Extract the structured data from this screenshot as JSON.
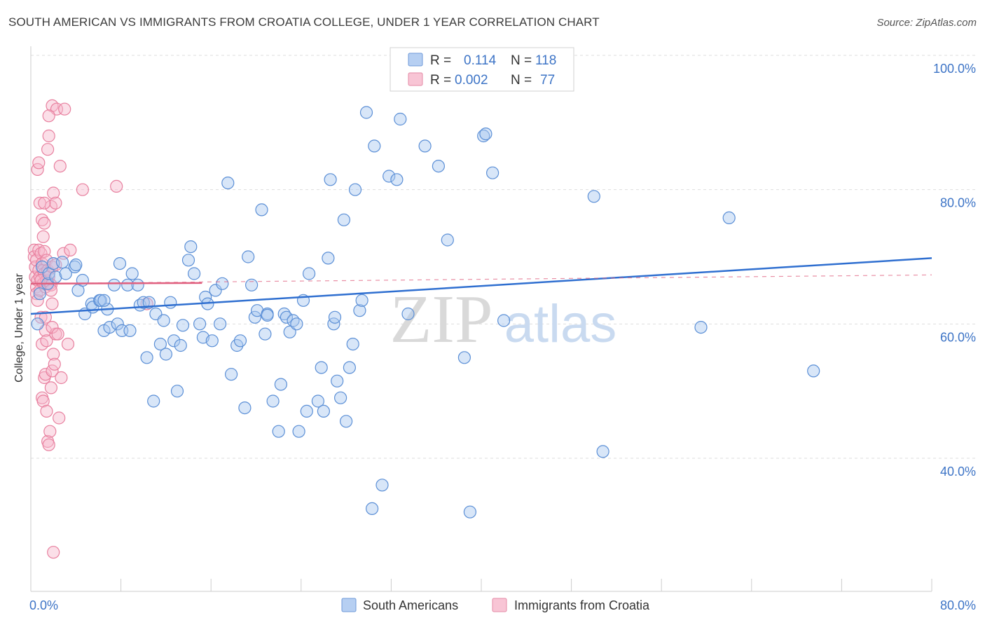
{
  "title": "SOUTH AMERICAN VS IMMIGRANTS FROM CROATIA COLLEGE, UNDER 1 YEAR CORRELATION CHART",
  "source": "Source: ZipAtlas.com",
  "watermark": {
    "zip": "ZIP",
    "atlas": "atlas"
  },
  "colors": {
    "blue": "#5b8fd6",
    "blue_fill": "#a9c7ef",
    "blue_line": "#2f6fd0",
    "pink": "#e8809f",
    "pink_fill": "#f6b9cc",
    "pink_line": "#e0607f",
    "axis_text": "#3d74c6",
    "grid": "#dddddd"
  },
  "legend": {
    "row1": {
      "r_label": "R =",
      "r_value": "0.114",
      "n_label": "N =",
      "n_value": "118"
    },
    "row2": {
      "r_label": "R =",
      "r_value": "0.002",
      "n_label": "N =",
      "n_value": "77"
    }
  },
  "bottom_legend": {
    "series1": "South Americans",
    "series2": "Immigrants from Croatia"
  },
  "chart_data": {
    "type": "scatter",
    "title": "SOUTH AMERICAN VS IMMIGRANTS FROM CROATIA COLLEGE, UNDER 1 YEAR CORRELATION CHART",
    "xlabel": "",
    "ylabel": "College, Under 1 year",
    "xlim": [
      0,
      80
    ],
    "ylim": [
      20,
      103
    ],
    "x_tick_labels": [
      "0.0%",
      "80.0%"
    ],
    "y_ticks": [
      40,
      60,
      80,
      100
    ],
    "y_tick_labels": [
      "40.0%",
      "60.0%",
      "80.0%",
      "100.0%"
    ],
    "series": [
      {
        "name": "South Americans",
        "R": 0.114,
        "N": 118,
        "trend": [
          [
            0,
            61.5
          ],
          [
            80,
            69.8
          ]
        ],
        "points": [
          [
            1.0,
            68.5
          ],
          [
            1.5,
            66.0
          ],
          [
            1.6,
            67.5
          ],
          [
            2.0,
            69.0
          ],
          [
            2.2,
            67.0
          ],
          [
            2.8,
            69.2
          ],
          [
            3.1,
            67.5
          ],
          [
            3.9,
            68.5
          ],
          [
            4.2,
            65.0
          ],
          [
            4.6,
            66.5
          ],
          [
            4.8,
            61.5
          ],
          [
            5.4,
            63.0
          ],
          [
            5.5,
            62.5
          ],
          [
            6.1,
            63.5
          ],
          [
            6.2,
            63.5
          ],
          [
            6.5,
            59.0
          ],
          [
            6.8,
            62.2
          ],
          [
            7.0,
            59.5
          ],
          [
            7.4,
            65.8
          ],
          [
            7.7,
            60.0
          ],
          [
            7.9,
            69.0
          ],
          [
            8.1,
            59.0
          ],
          [
            8.6,
            65.8
          ],
          [
            8.8,
            59.0
          ],
          [
            9.0,
            67.5
          ],
          [
            9.5,
            65.8
          ],
          [
            9.7,
            62.8
          ],
          [
            10.0,
            63.2
          ],
          [
            10.3,
            55.0
          ],
          [
            10.5,
            63.2
          ],
          [
            10.9,
            48.5
          ],
          [
            11.1,
            61.5
          ],
          [
            11.5,
            57.0
          ],
          [
            11.8,
            60.5
          ],
          [
            12.0,
            55.5
          ],
          [
            12.4,
            63.2
          ],
          [
            12.7,
            57.5
          ],
          [
            13.0,
            50.0
          ],
          [
            13.3,
            56.8
          ],
          [
            13.5,
            59.8
          ],
          [
            14.0,
            69.5
          ],
          [
            14.2,
            71.5
          ],
          [
            14.5,
            67.5
          ],
          [
            15.0,
            60.0
          ],
          [
            15.3,
            58.0
          ],
          [
            15.5,
            64.0
          ],
          [
            15.7,
            63.0
          ],
          [
            16.1,
            57.5
          ],
          [
            16.4,
            65.0
          ],
          [
            16.8,
            60.0
          ],
          [
            17.0,
            66.0
          ],
          [
            17.5,
            81.0
          ],
          [
            17.8,
            52.5
          ],
          [
            18.3,
            56.8
          ],
          [
            18.6,
            57.5
          ],
          [
            19.0,
            47.5
          ],
          [
            19.3,
            70.0
          ],
          [
            19.6,
            65.8
          ],
          [
            19.9,
            61.0
          ],
          [
            20.1,
            62.0
          ],
          [
            20.5,
            77.0
          ],
          [
            20.8,
            58.5
          ],
          [
            21.0,
            61.5
          ],
          [
            21.5,
            48.5
          ],
          [
            22.0,
            44.0
          ],
          [
            22.2,
            51.0
          ],
          [
            22.5,
            61.5
          ],
          [
            22.7,
            61.0
          ],
          [
            23.0,
            58.8
          ],
          [
            23.3,
            60.5
          ],
          [
            23.6,
            60.0
          ],
          [
            23.8,
            44.0
          ],
          [
            24.2,
            63.5
          ],
          [
            24.5,
            47.0
          ],
          [
            24.7,
            67.5
          ],
          [
            25.5,
            48.5
          ],
          [
            25.8,
            53.5
          ],
          [
            26.0,
            47.0
          ],
          [
            26.4,
            69.8
          ],
          [
            26.6,
            81.5
          ],
          [
            26.9,
            60.0
          ],
          [
            27.2,
            51.5
          ],
          [
            27.5,
            49.0
          ],
          [
            27.8,
            75.5
          ],
          [
            28.0,
            45.5
          ],
          [
            28.3,
            53.5
          ],
          [
            28.6,
            57.0
          ],
          [
            28.8,
            80.0
          ],
          [
            29.2,
            62.0
          ],
          [
            29.4,
            63.5
          ],
          [
            29.8,
            91.5
          ],
          [
            30.3,
            32.5
          ],
          [
            30.5,
            86.5
          ],
          [
            31.2,
            36.0
          ],
          [
            31.8,
            82.0
          ],
          [
            32.5,
            81.5
          ],
          [
            32.8,
            90.5
          ],
          [
            35.0,
            86.5
          ],
          [
            36.2,
            83.5
          ],
          [
            37.0,
            72.5
          ],
          [
            38.5,
            55.0
          ],
          [
            39.0,
            32.0
          ],
          [
            40.2,
            88.0
          ],
          [
            40.4,
            88.3
          ],
          [
            41.0,
            82.5
          ],
          [
            42.0,
            60.5
          ],
          [
            50.0,
            79.0
          ],
          [
            50.8,
            41.0
          ],
          [
            59.5,
            59.5
          ],
          [
            62.0,
            75.8
          ],
          [
            69.5,
            53.0
          ],
          [
            0.6,
            60.0
          ],
          [
            0.8,
            64.5
          ],
          [
            4.0,
            68.8
          ],
          [
            6.5,
            63.5
          ],
          [
            21.0,
            61.3
          ],
          [
            27.0,
            61.0
          ],
          [
            33.5,
            61.5
          ]
        ]
      },
      {
        "name": "Immigrants from Croatia",
        "R": 0.002,
        "N": 77,
        "trend": [
          [
            0,
            66.0
          ],
          [
            15.2,
            66.1
          ]
        ],
        "trend_extended": [
          [
            0,
            66.0
          ],
          [
            80,
            67.3
          ]
        ],
        "points": [
          [
            0.3,
            71.0
          ],
          [
            0.3,
            70.0
          ],
          [
            0.4,
            68.5
          ],
          [
            0.4,
            67.0
          ],
          [
            0.5,
            65.5
          ],
          [
            0.5,
            64.5
          ],
          [
            0.5,
            69.5
          ],
          [
            0.6,
            66.5
          ],
          [
            0.6,
            63.5
          ],
          [
            0.7,
            71.0
          ],
          [
            0.7,
            68.0
          ],
          [
            0.8,
            67.0
          ],
          [
            0.8,
            65.0
          ],
          [
            0.9,
            70.5
          ],
          [
            0.9,
            61.0
          ],
          [
            1.0,
            69.0
          ],
          [
            1.0,
            57.0
          ],
          [
            1.1,
            68.0
          ],
          [
            1.1,
            66.0
          ],
          [
            1.2,
            70.8
          ],
          [
            1.2,
            67.5
          ],
          [
            1.3,
            65.5
          ],
          [
            1.3,
            59.0
          ],
          [
            1.4,
            66.5
          ],
          [
            1.4,
            69.5
          ],
          [
            1.5,
            68.0
          ],
          [
            1.6,
            67.0
          ],
          [
            1.7,
            66.0
          ],
          [
            1.8,
            65.8
          ],
          [
            1.9,
            68.5
          ],
          [
            0.6,
            83.0
          ],
          [
            0.7,
            84.0
          ],
          [
            0.8,
            78.0
          ],
          [
            1.0,
            75.5
          ],
          [
            1.2,
            75.0
          ],
          [
            1.0,
            49.0
          ],
          [
            1.1,
            48.5
          ],
          [
            1.2,
            52.0
          ],
          [
            1.3,
            52.5
          ],
          [
            1.4,
            57.5
          ],
          [
            1.5,
            42.5
          ],
          [
            1.6,
            42.0
          ],
          [
            1.7,
            44.0
          ],
          [
            1.8,
            50.5
          ],
          [
            1.9,
            53.0
          ],
          [
            2.0,
            55.5
          ],
          [
            2.1,
            54.0
          ],
          [
            2.2,
            58.5
          ],
          [
            2.5,
            46.0
          ],
          [
            2.7,
            52.0
          ],
          [
            1.5,
            86.0
          ],
          [
            1.6,
            88.0
          ],
          [
            1.8,
            77.5
          ],
          [
            2.0,
            79.5
          ],
          [
            2.2,
            78.0
          ],
          [
            1.9,
            92.5
          ],
          [
            2.3,
            92.0
          ],
          [
            2.6,
            83.5
          ],
          [
            3.0,
            92.0
          ],
          [
            4.6,
            80.0
          ],
          [
            7.6,
            80.5
          ],
          [
            1.6,
            91.0
          ],
          [
            1.9,
            59.5
          ],
          [
            2.4,
            58.5
          ],
          [
            1.4,
            47.0
          ],
          [
            1.2,
            78.0
          ],
          [
            1.9,
            63.0
          ],
          [
            2.9,
            70.5
          ],
          [
            3.5,
            71.0
          ],
          [
            3.3,
            57.0
          ],
          [
            10.3,
            63.0
          ],
          [
            1.3,
            61.0
          ],
          [
            2.0,
            26.0
          ],
          [
            1.8,
            65.0
          ],
          [
            2.2,
            68.8
          ],
          [
            1.1,
            73.0
          ],
          [
            0.9,
            66.5
          ]
        ]
      }
    ]
  }
}
